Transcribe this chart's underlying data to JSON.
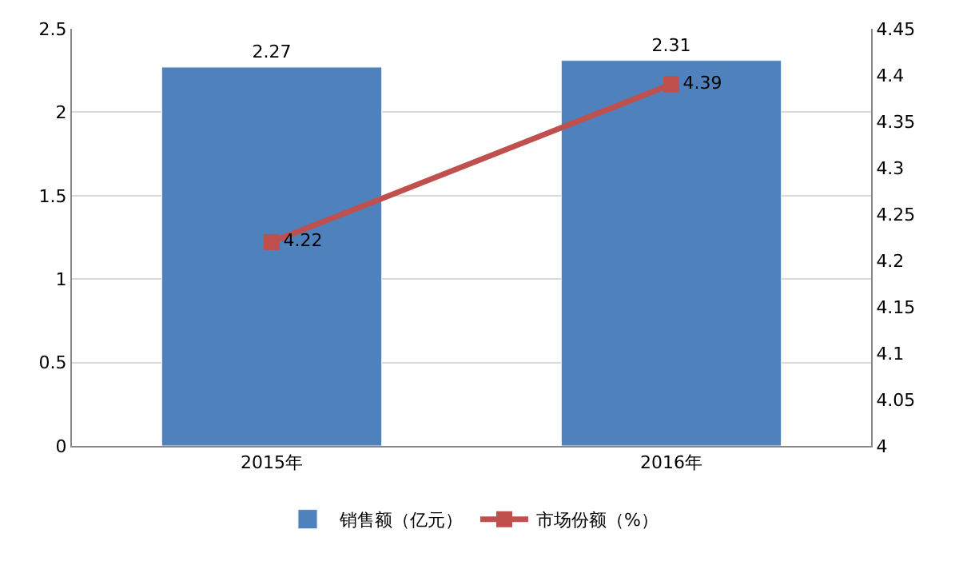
{
  "chart_data": {
    "type": "bar",
    "categories": [
      "2015年",
      "2016年"
    ],
    "series": [
      {
        "name": "销售额（亿元）",
        "color": "#4f81bd",
        "values": [
          2.27,
          2.31
        ]
      },
      {
        "name": "市场份额（%）",
        "type": "line",
        "axis": "y2",
        "color": "#c0504d",
        "values": [
          4.22,
          4.39
        ]
      }
    ],
    "ylim": [
      0,
      2.5
    ],
    "yticks": [
      0,
      0.5,
      1,
      1.5,
      2,
      2.5
    ],
    "y2lim": [
      4,
      4.45
    ],
    "y2ticks": [
      4,
      4.05,
      4.1,
      4.15,
      4.2,
      4.25,
      4.3,
      4.35,
      4.4,
      4.45
    ],
    "grid": "y",
    "legend": "bottom",
    "marker": "square",
    "line_style": "solid",
    "data_labels": true
  }
}
